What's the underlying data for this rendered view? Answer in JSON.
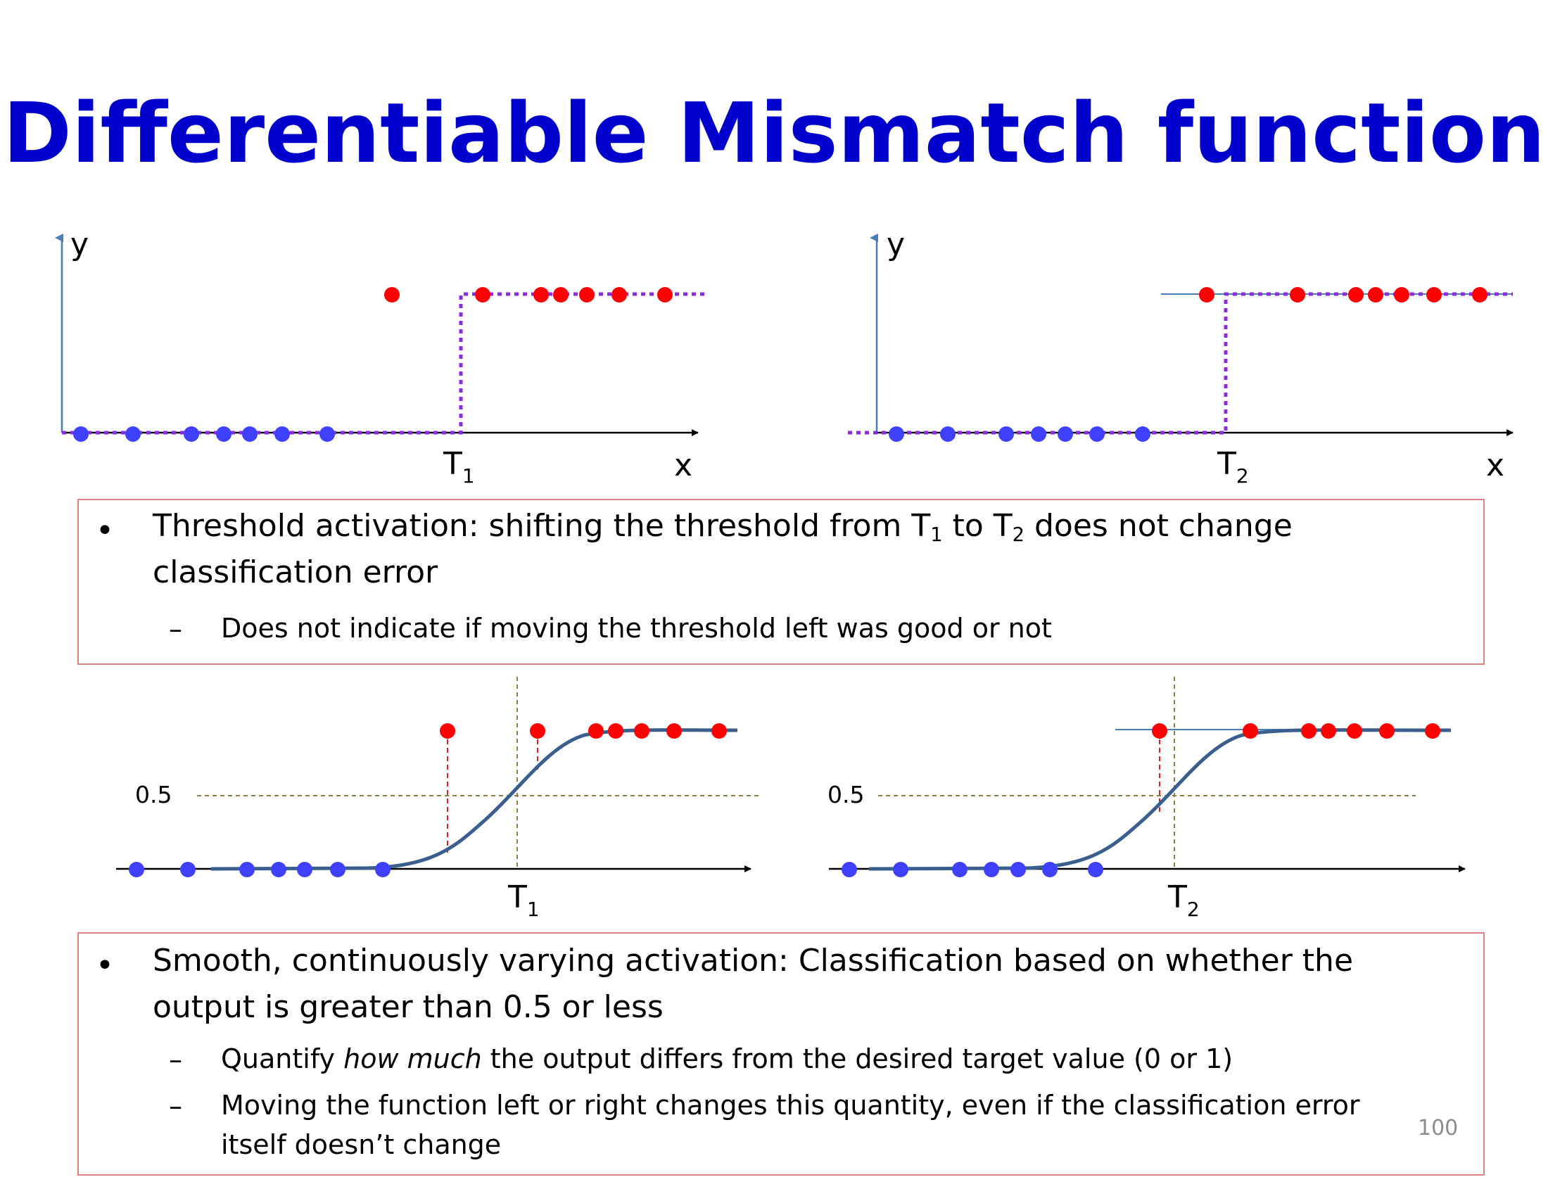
{
  "title": "Differentiable Mismatch function",
  "colors": {
    "title": "#0000cc",
    "positive_dot": "#ff0000",
    "negative_dot": "#4040ff",
    "threshold_step": "#8a2be2",
    "axis": "#000000",
    "sigmoid": "#3a5f8f",
    "box_border": "#e08080"
  },
  "top_left_plot": {
    "y_label": "y",
    "x_label": "x",
    "threshold_label": "T",
    "threshold_sub": "1"
  },
  "top_right_plot": {
    "y_label": "y",
    "x_label": "x",
    "threshold_label": "T",
    "threshold_sub": "2"
  },
  "bottom_left_plot": {
    "half_label": "0.5",
    "threshold_label": "T",
    "threshold_sub": "1"
  },
  "bottom_right_plot": {
    "half_label": "0.5",
    "threshold_label": "T",
    "threshold_sub": "2"
  },
  "box1": {
    "bullet": "•",
    "main_a": "Threshold activation: shifting the threshold from T",
    "main_sub1": "1",
    "main_b": " to T",
    "main_sub2": "2",
    "main_c": " does not change classification error",
    "dash": "–",
    "sub": "Does not indicate if moving the threshold left was good or not"
  },
  "box2": {
    "bullet": "•",
    "main": "Smooth, continuously varying activation: Classification based on whether the output is greater than 0.5 or less",
    "dash1": "–",
    "sub1_a": "Quantify ",
    "sub1_em": "how much",
    "sub1_b": " the output differs from the desired target value (0 or 1)",
    "dash2": "–",
    "sub2": "Moving the function left or right changes this quantity, even if the classification error itself doesn’t change"
  },
  "page_number": "100"
}
